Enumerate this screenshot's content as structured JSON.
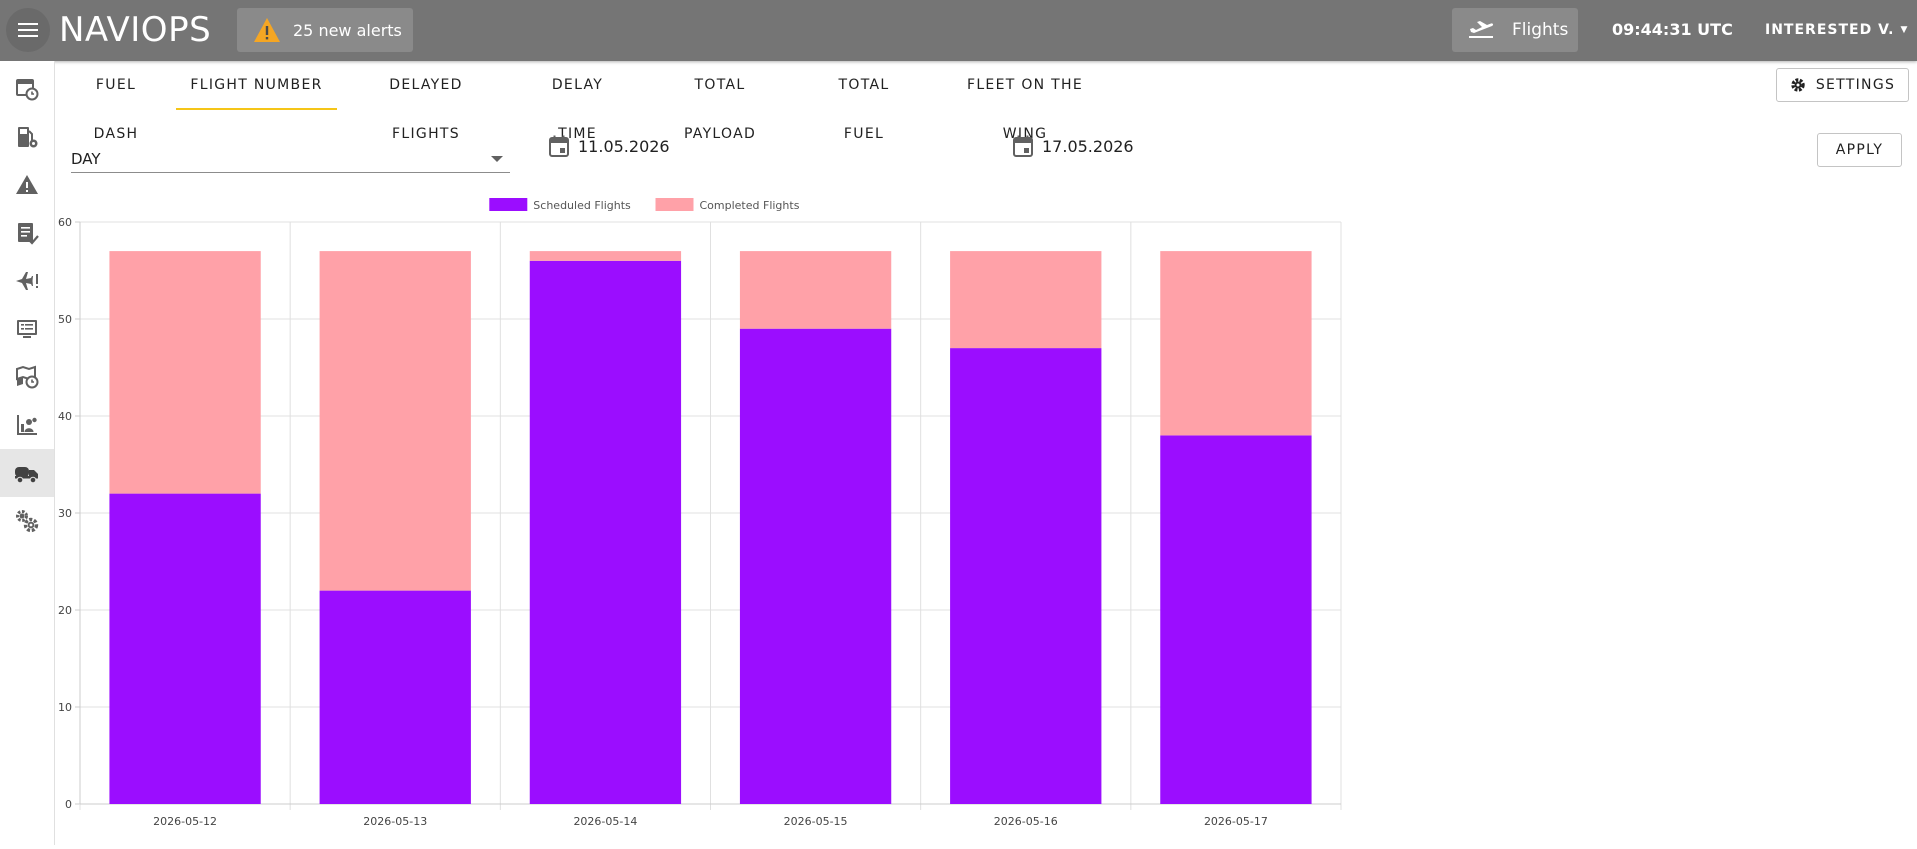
{
  "app": {
    "title": "NAVIOPS",
    "alerts_label": "25 new alerts",
    "flights_label": "Flights",
    "clock": "09:44:31 UTC",
    "user": "INTERESTED V."
  },
  "sidebar": {
    "items": [
      {
        "icon": "dashboard-clock-icon"
      },
      {
        "icon": "fuel-settings-icon"
      },
      {
        "icon": "warning-icon"
      },
      {
        "icon": "checklist-icon"
      },
      {
        "icon": "flight-alert-icon"
      },
      {
        "icon": "monitor-list-icon"
      },
      {
        "icon": "map-clock-icon"
      },
      {
        "icon": "chart-people-icon"
      },
      {
        "icon": "fuel-truck-icon",
        "active": true
      },
      {
        "icon": "gears-icon"
      }
    ]
  },
  "tabs": [
    {
      "label": "FUEL DASH"
    },
    {
      "label": "FLIGHT NUMBER",
      "active": true
    },
    {
      "label": "DELAYED FLIGHTS"
    },
    {
      "label": "DELAY TIME"
    },
    {
      "label": "TOTAL PAYLOAD"
    },
    {
      "label": "TOTAL FUEL"
    },
    {
      "label": "FLEET ON THE WING"
    }
  ],
  "settings_label": "SETTINGS",
  "filters": {
    "period": "DAY",
    "date_from": "11.05.2026",
    "date_to": "17.05.2026",
    "apply_label": "APPLY"
  },
  "colors": {
    "scheduled": "#9b0dff",
    "completed": "#ffa1a8",
    "topbar": "#757575",
    "tab_indicator": "#f5c518"
  },
  "chart_data": {
    "type": "bar",
    "stacked": true,
    "categories": [
      "2026-05-12",
      "2026-05-13",
      "2026-05-14",
      "2026-05-15",
      "2026-05-16",
      "2026-05-17"
    ],
    "series": [
      {
        "name": "Scheduled Flights",
        "color": "#9b0dff",
        "values": [
          32,
          22,
          56,
          49,
          47,
          38
        ]
      },
      {
        "name": "Completed Flights",
        "color": "#ffa1a8",
        "values": [
          25,
          35,
          1,
          8,
          10,
          19
        ]
      }
    ],
    "ylim": [
      0,
      60
    ],
    "yticks": [
      0,
      10,
      20,
      30,
      40,
      50,
      60
    ],
    "grid": true,
    "legend": "top-center"
  }
}
